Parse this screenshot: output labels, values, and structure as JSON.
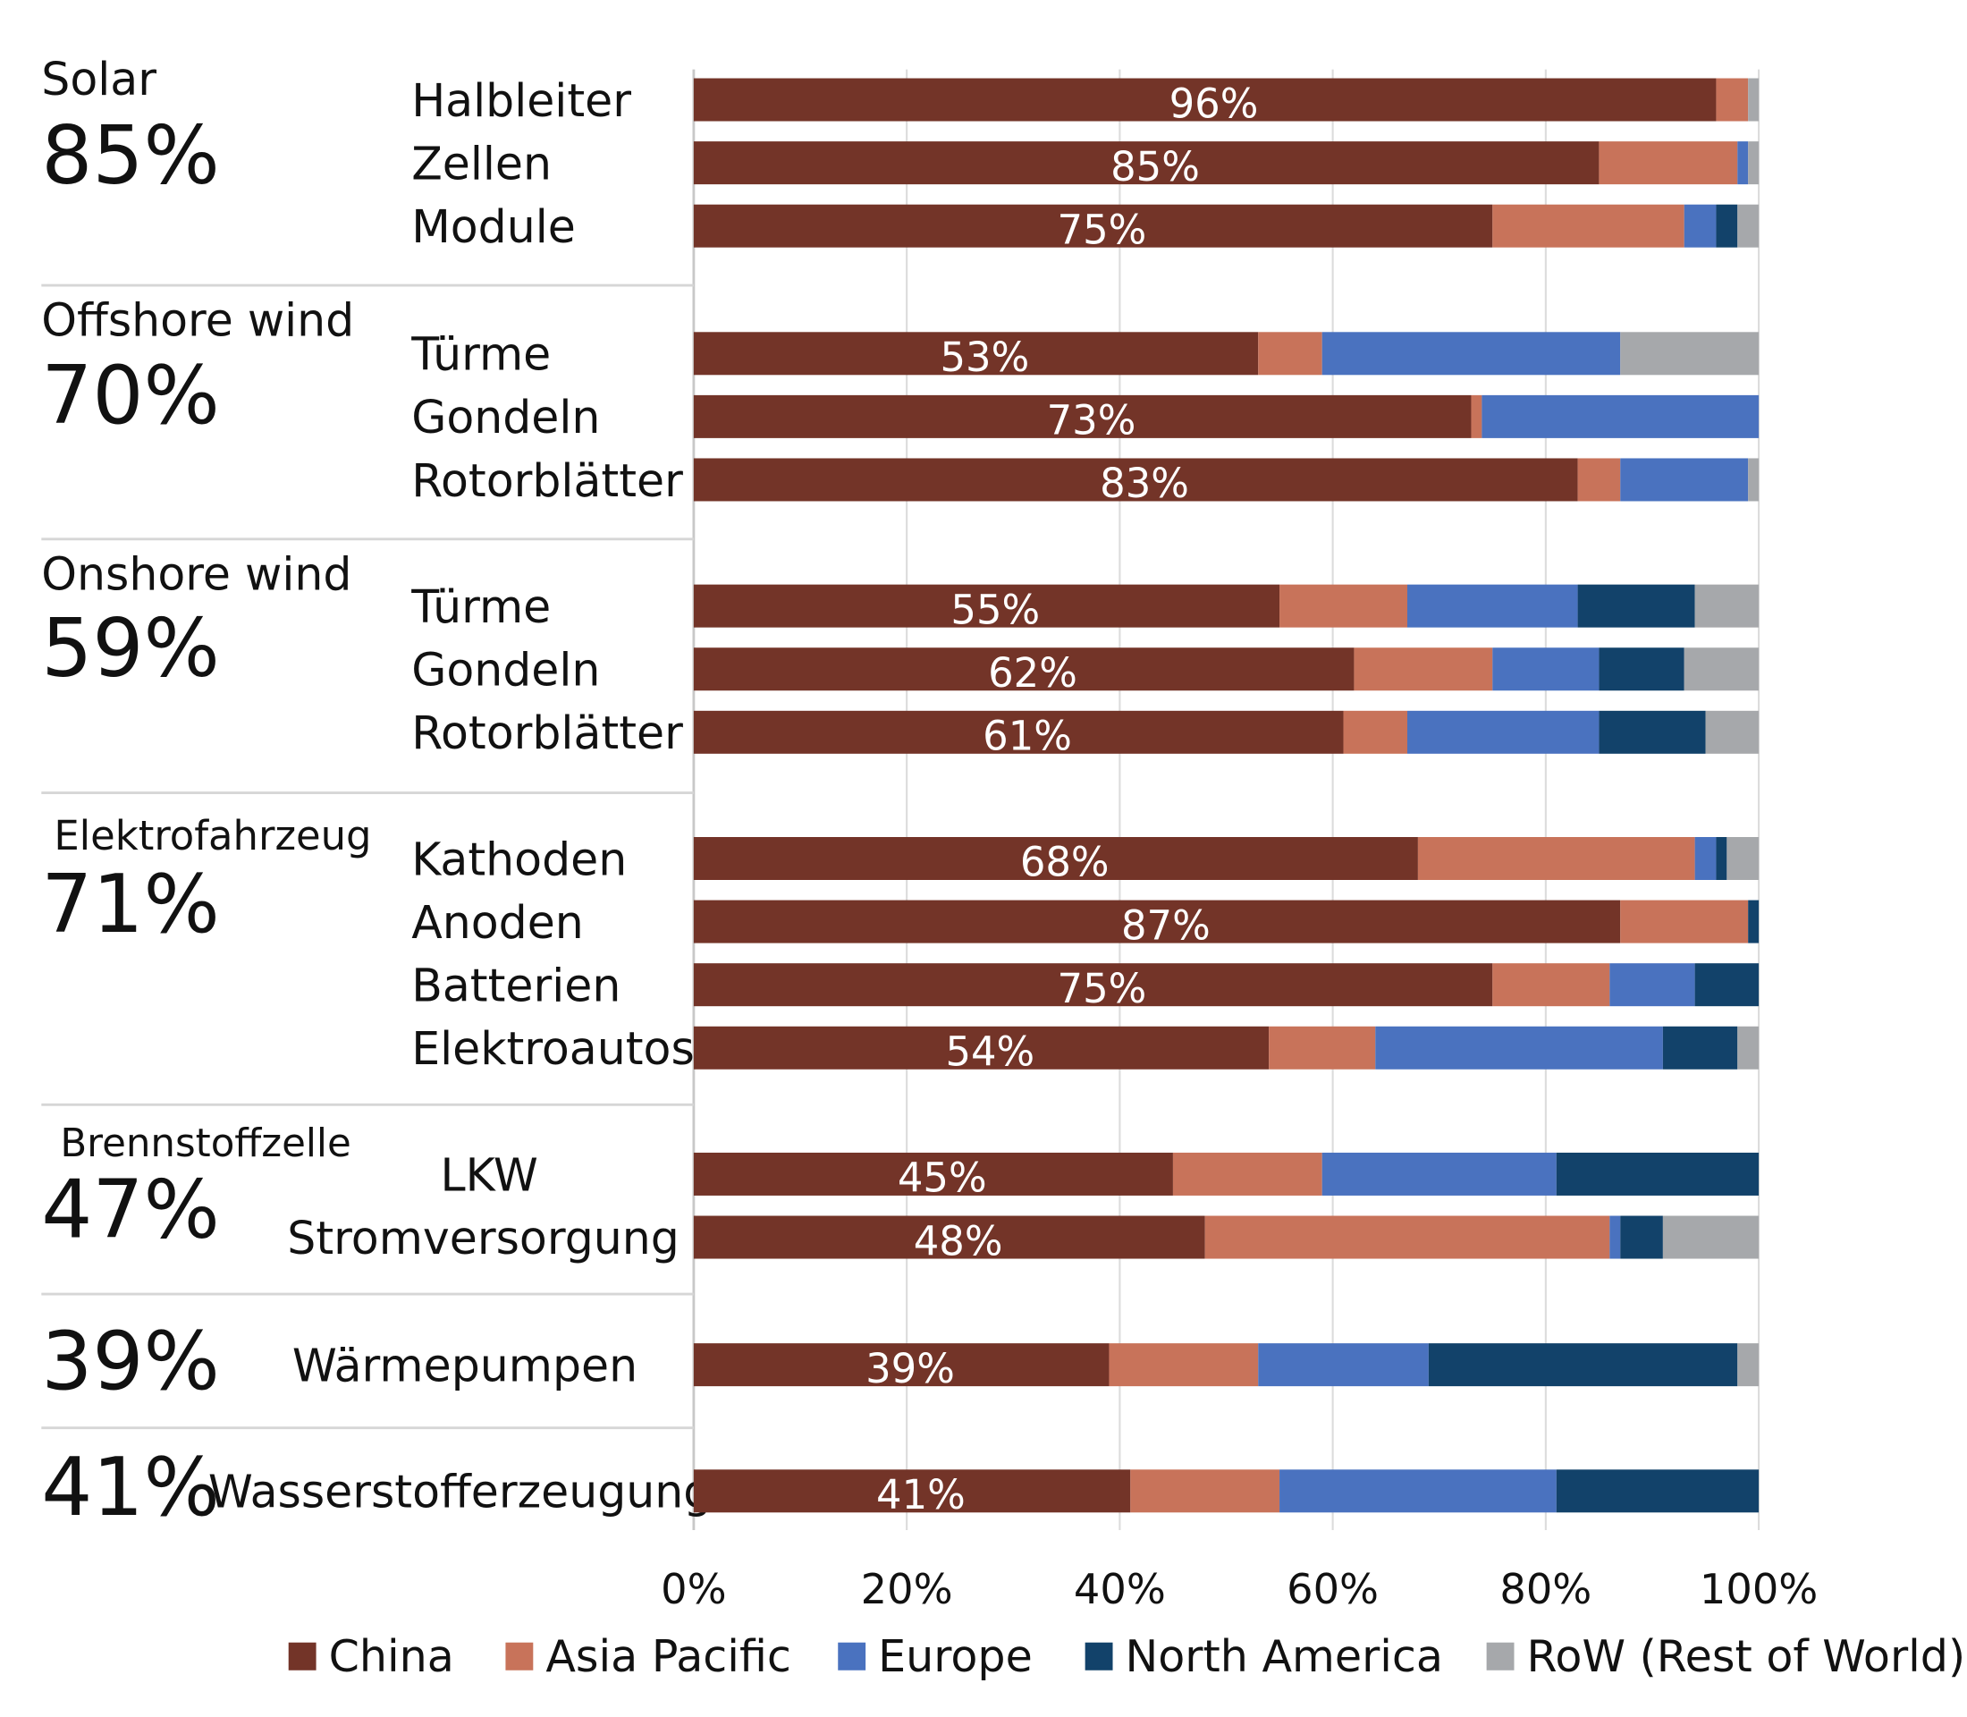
{
  "chart_data": {
    "type": "bar",
    "orientation": "horizontal",
    "stacked": true,
    "xlim": [
      0,
      100
    ],
    "x_ticks": [
      "0%",
      "20%",
      "40%",
      "60%",
      "80%",
      "100%"
    ],
    "grid": true,
    "legend_placement": "bottom",
    "series": [
      {
        "name": "China",
        "color": "#733428"
      },
      {
        "name": "Asia Pacific",
        "color": "#c8735a"
      },
      {
        "name": "Europe",
        "color": "#4a72bf"
      },
      {
        "name": "North America",
        "color": "#12426a"
      },
      {
        "name": "RoW (Rest of World)",
        "color": "#a6a8ab"
      }
    ],
    "groups": [
      {
        "name": "Solar",
        "share": "85%",
        "rows": [
          {
            "label": "Halbleiter",
            "data_label": "96%",
            "values": [
              96,
              3,
              0,
              0,
              1
            ]
          },
          {
            "label": "Zellen",
            "data_label": "85%",
            "values": [
              85,
              13,
              1,
              0,
              1
            ]
          },
          {
            "label": "Module",
            "data_label": "75%",
            "values": [
              75,
              18,
              3,
              2,
              2
            ]
          }
        ]
      },
      {
        "name": "Offshore wind",
        "share": "70%",
        "rows": [
          {
            "label": "Türme",
            "data_label": "53%",
            "values": [
              53,
              6,
              28,
              0,
              13
            ]
          },
          {
            "label": "Gondeln",
            "data_label": "73%",
            "values": [
              73,
              1,
              26,
              0,
              0
            ]
          },
          {
            "label": "Rotorblätter",
            "data_label": "83%",
            "values": [
              83,
              4,
              12,
              0,
              1
            ]
          }
        ]
      },
      {
        "name": "Onshore wind",
        "share": "59%",
        "rows": [
          {
            "label": "Türme",
            "data_label": "55%",
            "values": [
              55,
              12,
              16,
              11,
              6
            ]
          },
          {
            "label": "Gondeln",
            "data_label": "62%",
            "values": [
              62,
              13,
              10,
              8,
              7
            ]
          },
          {
            "label": "Rotorblätter",
            "data_label": "61%",
            "values": [
              61,
              6,
              18,
              10,
              5
            ]
          }
        ]
      },
      {
        "name": "Elektrofahrzeug",
        "share": "71%",
        "rows": [
          {
            "label": "Kathoden",
            "data_label": "68%",
            "values": [
              68,
              26,
              2,
              1,
              3
            ]
          },
          {
            "label": "Anoden",
            "data_label": "87%",
            "values": [
              87,
              12,
              0,
              1,
              0
            ]
          },
          {
            "label": "Batterien",
            "data_label": "75%",
            "values": [
              75,
              11,
              8,
              6,
              0
            ]
          },
          {
            "label": "Elektroautos",
            "data_label": "54%",
            "values": [
              54,
              10,
              27,
              7,
              2
            ]
          }
        ]
      },
      {
        "name": "Brennstoffzelle",
        "share": "47%",
        "rows": [
          {
            "label": "LKW",
            "data_label": "45%",
            "values": [
              45,
              14,
              22,
              19,
              0
            ]
          },
          {
            "label": "Stromversorgung",
            "data_label": "48%",
            "values": [
              48,
              38,
              1,
              4,
              9
            ]
          }
        ]
      },
      {
        "name": "",
        "share": "39%",
        "rows": [
          {
            "label": "Wärmepumpen",
            "data_label": "39%",
            "values": [
              39,
              14,
              16,
              29,
              2
            ]
          }
        ]
      },
      {
        "name": "",
        "share": "41%",
        "rows": [
          {
            "label": "Wasserstofferzeugung",
            "data_label": "41%",
            "values": [
              41,
              14,
              26,
              19,
              0
            ]
          }
        ]
      }
    ]
  }
}
